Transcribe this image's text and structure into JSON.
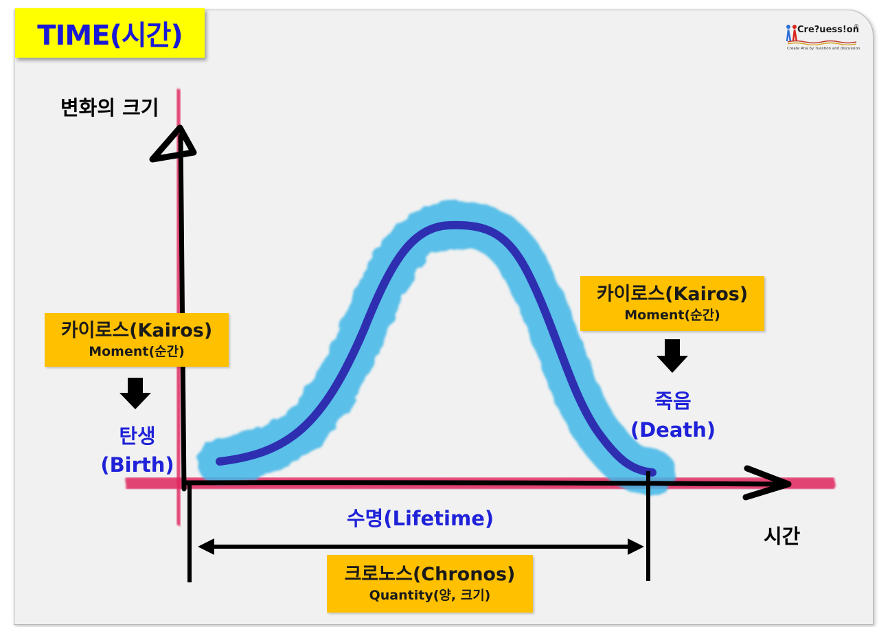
{
  "title": "TIME(시간)",
  "logo": {
    "text": "Cre?uess!on",
    "registered": "®",
    "tagline": "Create Aha by ?uestion and discussion",
    "icon": "people-question-logo"
  },
  "axes": {
    "y_label": "변화의 크기",
    "x_label": "시간"
  },
  "kairos_left": {
    "title": "카이로스(Kairos)",
    "subtitle": "Moment(순간)",
    "event": "탄생",
    "event_en": "(Birth)"
  },
  "kairos_right": {
    "title": "카이로스(Kairos)",
    "subtitle": "Moment(순간)",
    "event": "죽음",
    "event_en": "(Death)"
  },
  "lifetime_label": "수명(Lifetime)",
  "chronos": {
    "title": "크로노스(Chronos)",
    "subtitle": "Quantity(양, 크기)"
  },
  "colors": {
    "title_bg": "#ffff00",
    "title_text": "#1a1ad6",
    "axis_highlight": "#e0245e",
    "curve_highlight": "#3fb6e8",
    "curve": "#2e2eb0",
    "box_bg": "#ffc000",
    "label_blue": "#1f22d8"
  }
}
